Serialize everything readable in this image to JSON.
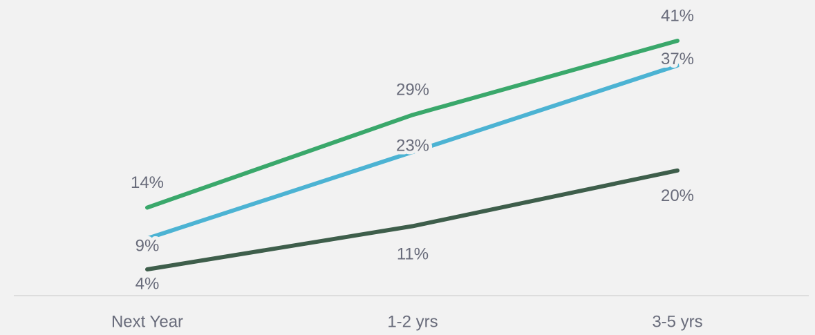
{
  "chart_data": {
    "type": "line",
    "categories": [
      "Next Year",
      "1-2 yrs",
      "3-5 yrs"
    ],
    "series": [
      {
        "color": "#3e5e4b",
        "values": [
          4,
          11,
          20
        ],
        "value_labels": [
          "4%",
          "11%",
          "20%"
        ]
      },
      {
        "color": "#4cb3d3",
        "values": [
          9,
          23,
          37
        ],
        "value_labels": [
          "9%",
          "23%",
          "37%"
        ]
      },
      {
        "color": "#3aa86b",
        "values": [
          14,
          29,
          41
        ],
        "value_labels": [
          "14%",
          "29%",
          "41%"
        ]
      }
    ],
    "grid": false
  }
}
